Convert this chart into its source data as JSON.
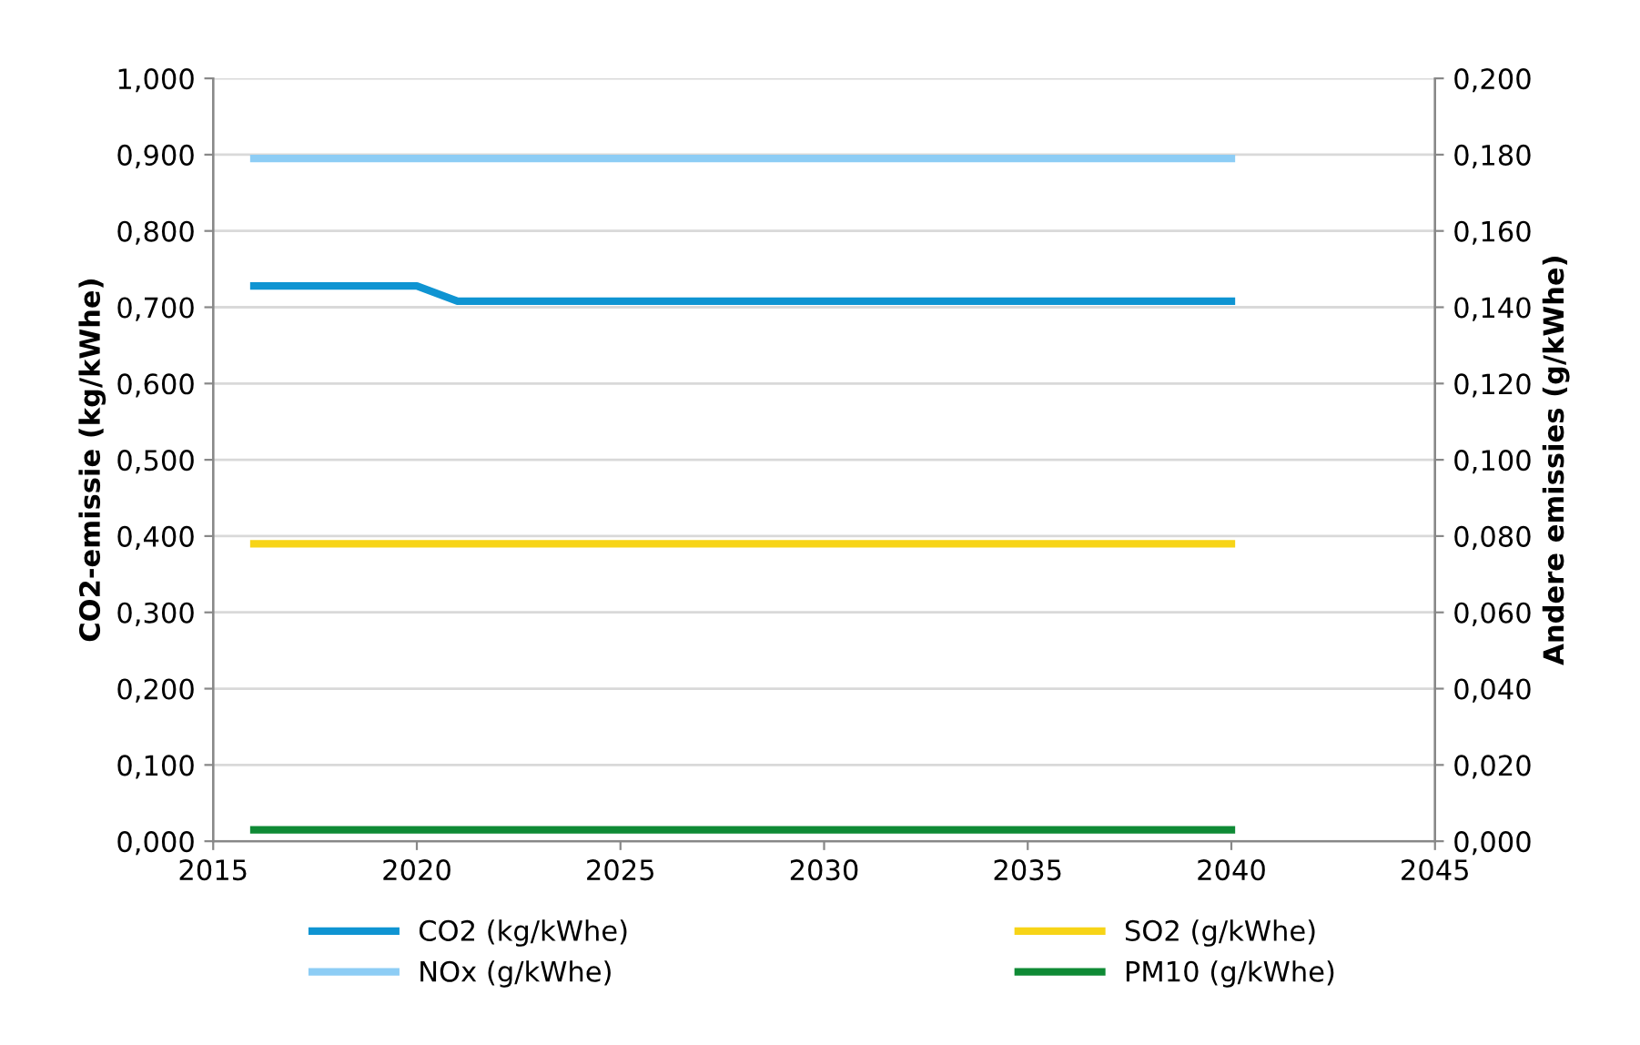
{
  "chart_data": {
    "type": "line",
    "xlabel": null,
    "ylabel": "CO2-emissie (kg/kWhe)",
    "y2label": "Andere emissies (g/kWhe)",
    "xlim": [
      2015,
      2045
    ],
    "xticks": [
      2015,
      2020,
      2025,
      2030,
      2035,
      2040,
      2045
    ],
    "ylim": [
      0,
      1
    ],
    "yticks": [
      {
        "value": 0,
        "label": "0,000"
      },
      {
        "value": 0.1,
        "label": "0,100"
      },
      {
        "value": 0.2,
        "label": "0,200"
      },
      {
        "value": 0.3,
        "label": "0,300"
      },
      {
        "value": 0.4,
        "label": "0,400"
      },
      {
        "value": 0.5,
        "label": "0,500"
      },
      {
        "value": 0.6,
        "label": "0,600"
      },
      {
        "value": 0.7,
        "label": "0,700"
      },
      {
        "value": 0.8,
        "label": "0,800"
      },
      {
        "value": 0.9,
        "label": "0,900"
      },
      {
        "value": 1,
        "label": "1,000"
      }
    ],
    "y2lim": [
      0,
      0.2
    ],
    "y2ticks": [
      {
        "value": 0,
        "label": "0,000"
      },
      {
        "value": 0.02,
        "label": "0,020"
      },
      {
        "value": 0.04,
        "label": "0,040"
      },
      {
        "value": 0.06,
        "label": "0,060"
      },
      {
        "value": 0.08,
        "label": "0,080"
      },
      {
        "value": 0.1,
        "label": "0,100"
      },
      {
        "value": 0.12,
        "label": "0,120"
      },
      {
        "value": 0.14,
        "label": "0,140"
      },
      {
        "value": 0.16,
        "label": "0,160"
      },
      {
        "value": 0.18,
        "label": "0,180"
      },
      {
        "value": 0.2,
        "label": "0,200"
      }
    ],
    "grid": "y",
    "legend": "bottom",
    "marker": "none",
    "line_style": "solid",
    "series": [
      {
        "name": "CO2 (kg/kWhe)",
        "color": "#0f94d2",
        "x": [
          2016,
          2020,
          2021,
          2040
        ],
        "values": [
          0.728,
          0.728,
          0.708,
          0.708
        ]
      },
      {
        "name": "NOx (g/kWhe)",
        "color": "#8dcdf5",
        "axis": "y2",
        "x": [
          2016,
          2040
        ],
        "values": [
          0.179,
          0.179
        ]
      },
      {
        "name": "SO2 (g/kWhe)",
        "color": "#f7d417",
        "axis": "y2",
        "x": [
          2016,
          2040
        ],
        "values": [
          0.078,
          0.078
        ]
      },
      {
        "name": "PM10 (g/kWhe)",
        "color": "#0f8a35",
        "axis": "y2",
        "x": [
          2016,
          2040
        ],
        "values": [
          0.003,
          0.003
        ]
      }
    ]
  }
}
